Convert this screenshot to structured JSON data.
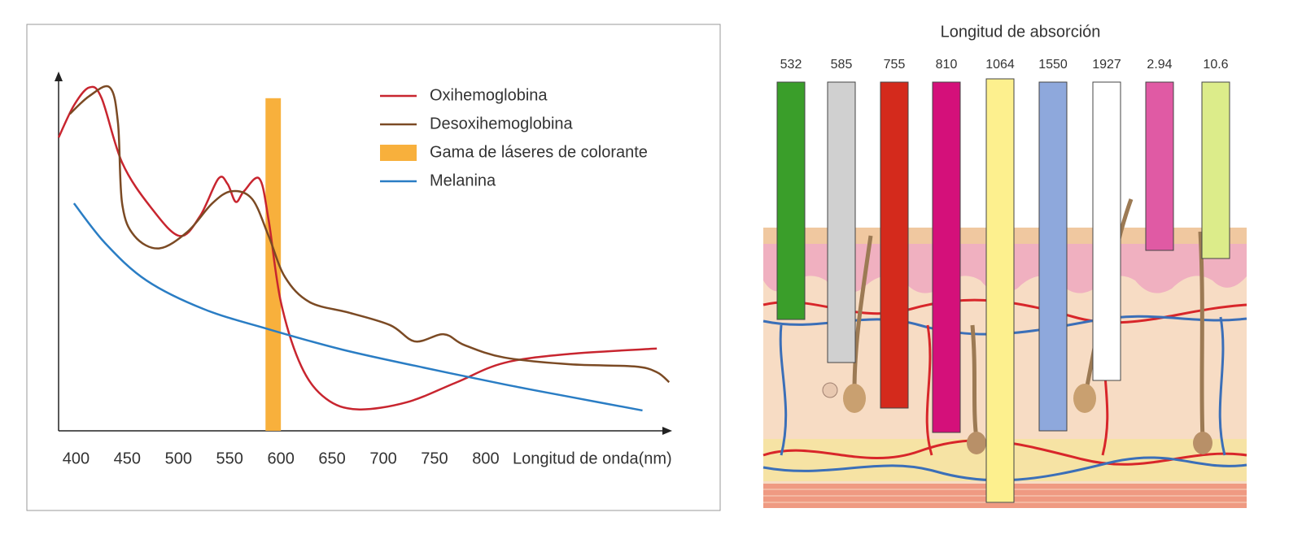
{
  "chart_data": {
    "type": "line",
    "x_label": "Longitud de onda(nm)",
    "xlim": [
      383,
      978
    ],
    "xticks": [
      400,
      450,
      500,
      550,
      600,
      650,
      700,
      750,
      800
    ],
    "ylim": [
      0,
      100
    ],
    "series": [
      {
        "name": "Oxihemoglobina",
        "type": "line",
        "color": "#c8252f",
        "x": [
          383,
          398,
          413,
          425,
          445,
          473,
          501,
          521,
          539,
          548,
          556,
          564,
          579,
          588,
          600,
          620,
          644,
          675,
          723,
          771,
          818,
          882,
          967
        ],
        "values": [
          82,
          91,
          96,
          93,
          75,
          62.5,
          54.5,
          60,
          70.5,
          69,
          64,
          67,
          70.5,
          59,
          36,
          18,
          9,
          6,
          8,
          13.5,
          19,
          21.5,
          23
        ]
      },
      {
        "name": "Desoxihemoglobina",
        "type": "line",
        "color": "#7b4a24",
        "x": [
          394,
          413,
          433,
          441,
          445,
          457,
          481,
          509,
          533,
          552,
          572,
          588,
          604,
          628,
          667,
          707,
          731,
          759,
          779,
          818,
          882,
          945,
          967,
          979
        ],
        "values": [
          88.6,
          93.6,
          96,
          86,
          63.6,
          54.5,
          51,
          55.7,
          63.6,
          67,
          64.8,
          54.5,
          43,
          36,
          33,
          29.5,
          25,
          27,
          24,
          20.5,
          18.6,
          18,
          16.4,
          13.6
        ]
      },
      {
        "name": "Gama de láseres de colorante",
        "type": "band",
        "color": "#f8b03c",
        "x": [
          585,
          600
        ],
        "values": [
          93,
          93
        ]
      },
      {
        "name": "Melanina",
        "type": "line",
        "color": "#2a7dc4",
        "x": [
          398,
          429,
          469,
          525,
          588,
          660,
          739,
          818,
          882,
          953
        ],
        "values": [
          63.6,
          52.3,
          42,
          34,
          28.4,
          22.7,
          17.7,
          13,
          9.5,
          5.7
        ]
      }
    ]
  },
  "diagram": {
    "title": "Longitud de absorción",
    "lasers": [
      {
        "label": "532",
        "color": "#3a9e2a"
      },
      {
        "label": "585",
        "color": "#d0d0d0"
      },
      {
        "label": "755",
        "color": "#d42a1c"
      },
      {
        "label": "810",
        "color": "#d4107a"
      },
      {
        "label": "1064",
        "color": "#fdf08e"
      },
      {
        "label": "1550",
        "color": "#8ea8dc"
      },
      {
        "label": "1927",
        "color": "#ffffff"
      },
      {
        "label": "2.94",
        "color": "#e05aa4"
      },
      {
        "label": "10.6",
        "color": "#dcec8a"
      }
    ]
  }
}
